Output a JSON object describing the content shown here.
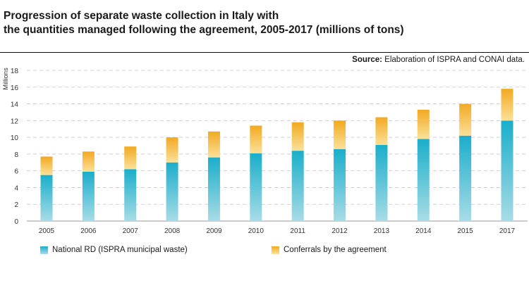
{
  "header": {
    "title_line1": "Progression of separate waste collection in Italy with",
    "title_line2": "the quantities managed following the agreement, 2005-2017 (millions of tons)",
    "source_label": "Source:",
    "source_text": " Elaboration of ISPRA and CONAI data."
  },
  "colors": {
    "national_top": "#1aaecb",
    "national_bottom": "#a8dce6",
    "conferrals_top": "#f2a922",
    "conferrals_bottom": "#fbe199",
    "grid": "#d0d0d0"
  },
  "chart_data": {
    "type": "bar",
    "stacked": true,
    "categories": [
      "2005",
      "2006",
      "2007",
      "2008",
      "2009",
      "2010",
      "2011",
      "2012",
      "2013",
      "2014",
      "2015",
      "2017"
    ],
    "series": [
      {
        "name": "National RD (ISPRA municipal waste)",
        "values": [
          5.5,
          5.9,
          6.2,
          7.0,
          7.6,
          8.1,
          8.4,
          8.6,
          9.1,
          9.8,
          10.2,
          12.0
        ]
      },
      {
        "name": "Conferrals by the agreement",
        "values": [
          2.2,
          2.4,
          2.7,
          3.0,
          3.1,
          3.3,
          3.4,
          3.4,
          3.3,
          3.5,
          3.8,
          3.8
        ]
      }
    ],
    "ylabel": "Millions",
    "ylim": [
      0,
      18
    ],
    "yticks": [
      0,
      2,
      4,
      6,
      8,
      10,
      12,
      14,
      16,
      18
    ],
    "grid": true,
    "legend_position": "bottom"
  }
}
